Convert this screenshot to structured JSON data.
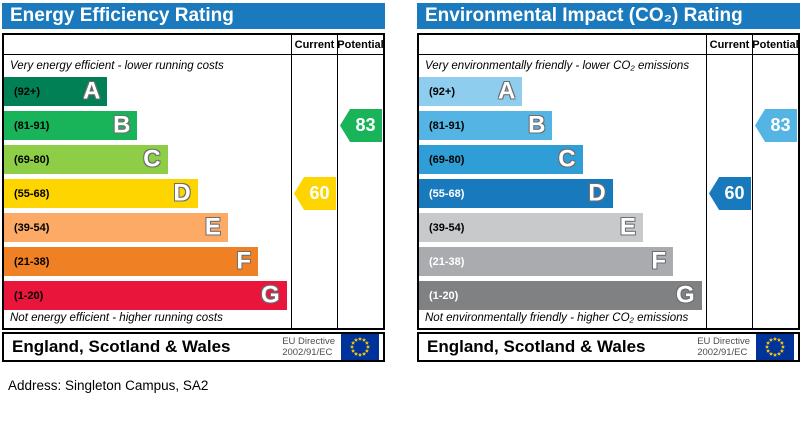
{
  "address_line": "Address: Singleton Campus, SA2",
  "eu_flag": {
    "background": "#003399",
    "stars": "#ffcc00"
  },
  "charts": [
    {
      "title": "Energy Efficiency Rating",
      "header_color": "#1a7abd",
      "columns": {
        "current": "Current",
        "potential": "Potential"
      },
      "top_caption": "Very energy efficient - lower running costs",
      "bottom_caption": "Not energy efficient - higher running costs",
      "bands": [
        {
          "letter": "A",
          "range": "(92+)",
          "color": "#008054",
          "width_pct": 36,
          "label_color": "#000000"
        },
        {
          "letter": "B",
          "range": "(81-91)",
          "color": "#19b459",
          "width_pct": 46.5,
          "label_color": "#000000"
        },
        {
          "letter": "C",
          "range": "(69-80)",
          "color": "#8dce46",
          "width_pct": 57,
          "label_color": "#000000"
        },
        {
          "letter": "D",
          "range": "(55-68)",
          "color": "#ffd500",
          "width_pct": 67.5,
          "label_color": "#000000"
        },
        {
          "letter": "E",
          "range": "(39-54)",
          "color": "#fcaa65",
          "width_pct": 78,
          "label_color": "#000000"
        },
        {
          "letter": "F",
          "range": "(21-38)",
          "color": "#ef8023",
          "width_pct": 88.5,
          "label_color": "#000000"
        },
        {
          "letter": "G",
          "range": "(1-20)",
          "color": "#e9153b",
          "width_pct": 98.5,
          "label_color": "#000000"
        }
      ],
      "current": {
        "value": "60",
        "color": "#ffd500",
        "band_index": 3
      },
      "potential": {
        "value": "83",
        "color": "#19b459",
        "band_index": 1
      },
      "footer": {
        "region": "England, Scotland & Wales",
        "directive_line1": "EU Directive",
        "directive_line2": "2002/91/EC"
      }
    },
    {
      "title": "Environmental Impact (CO₂) Rating",
      "header_color": "#1a7abd",
      "columns": {
        "current": "Current",
        "potential": "Potential"
      },
      "top_caption": "Very environmentally friendly - lower CO₂ emissions",
      "bottom_caption": "Not environmentally friendly - higher CO₂ emissions",
      "bands": [
        {
          "letter": "A",
          "range": "(92+)",
          "color": "#8ecdee",
          "width_pct": 36,
          "label_color": "#000000"
        },
        {
          "letter": "B",
          "range": "(81-91)",
          "color": "#54b5e4",
          "width_pct": 46.5,
          "label_color": "#000000"
        },
        {
          "letter": "C",
          "range": "(69-80)",
          "color": "#2f9ed6",
          "width_pct": 57,
          "label_color": "#000000"
        },
        {
          "letter": "D",
          "range": "(55-68)",
          "color": "#1879bd",
          "width_pct": 67.5,
          "label_color": "#ffffff"
        },
        {
          "letter": "E",
          "range": "(39-54)",
          "color": "#c8c9ca",
          "width_pct": 78,
          "label_color": "#000000"
        },
        {
          "letter": "F",
          "range": "(21-38)",
          "color": "#a9abae",
          "width_pct": 88.5,
          "label_color": "#ffffff"
        },
        {
          "letter": "G",
          "range": "(1-20)",
          "color": "#7f8183",
          "width_pct": 98.5,
          "label_color": "#ffffff"
        }
      ],
      "current": {
        "value": "60",
        "color": "#1879bd",
        "band_index": 3
      },
      "potential": {
        "value": "83",
        "color": "#54b5e4",
        "band_index": 1
      },
      "footer": {
        "region": "England, Scotland & Wales",
        "directive_line1": "EU Directive",
        "directive_line2": "2002/91/EC"
      }
    }
  ],
  "chart_data": [
    {
      "type": "bar",
      "orientation": "horizontal",
      "title": "Energy Efficiency Rating",
      "categories": [
        "A (92+)",
        "B (81-91)",
        "C (69-80)",
        "D (55-68)",
        "E (39-54)",
        "F (21-38)",
        "G (1-20)"
      ],
      "values": [
        36,
        46.5,
        57,
        67.5,
        78,
        88.5,
        98.5
      ],
      "value_note": "bar lengths as % of band scale width",
      "markers": {
        "current": 60,
        "potential": 83
      },
      "current_band": "D",
      "potential_band": "B",
      "top_annotation": "Very energy efficient - lower running costs",
      "bottom_annotation": "Not energy efficient - higher running costs",
      "footer": "England, Scotland & Wales | EU Directive 2002/91/EC"
    },
    {
      "type": "bar",
      "orientation": "horizontal",
      "title": "Environmental Impact (CO₂) Rating",
      "categories": [
        "A (92+)",
        "B (81-91)",
        "C (69-80)",
        "D (55-68)",
        "E (39-54)",
        "F (21-38)",
        "G (1-20)"
      ],
      "values": [
        36,
        46.5,
        57,
        67.5,
        78,
        88.5,
        98.5
      ],
      "value_note": "bar lengths as % of band scale width",
      "markers": {
        "current": 60,
        "potential": 83
      },
      "current_band": "D",
      "potential_band": "B",
      "top_annotation": "Very environmentally friendly - lower CO₂ emissions",
      "bottom_annotation": "Not environmentally friendly - higher CO₂ emissions",
      "footer": "England, Scotland & Wales | EU Directive 2002/91/EC"
    }
  ]
}
